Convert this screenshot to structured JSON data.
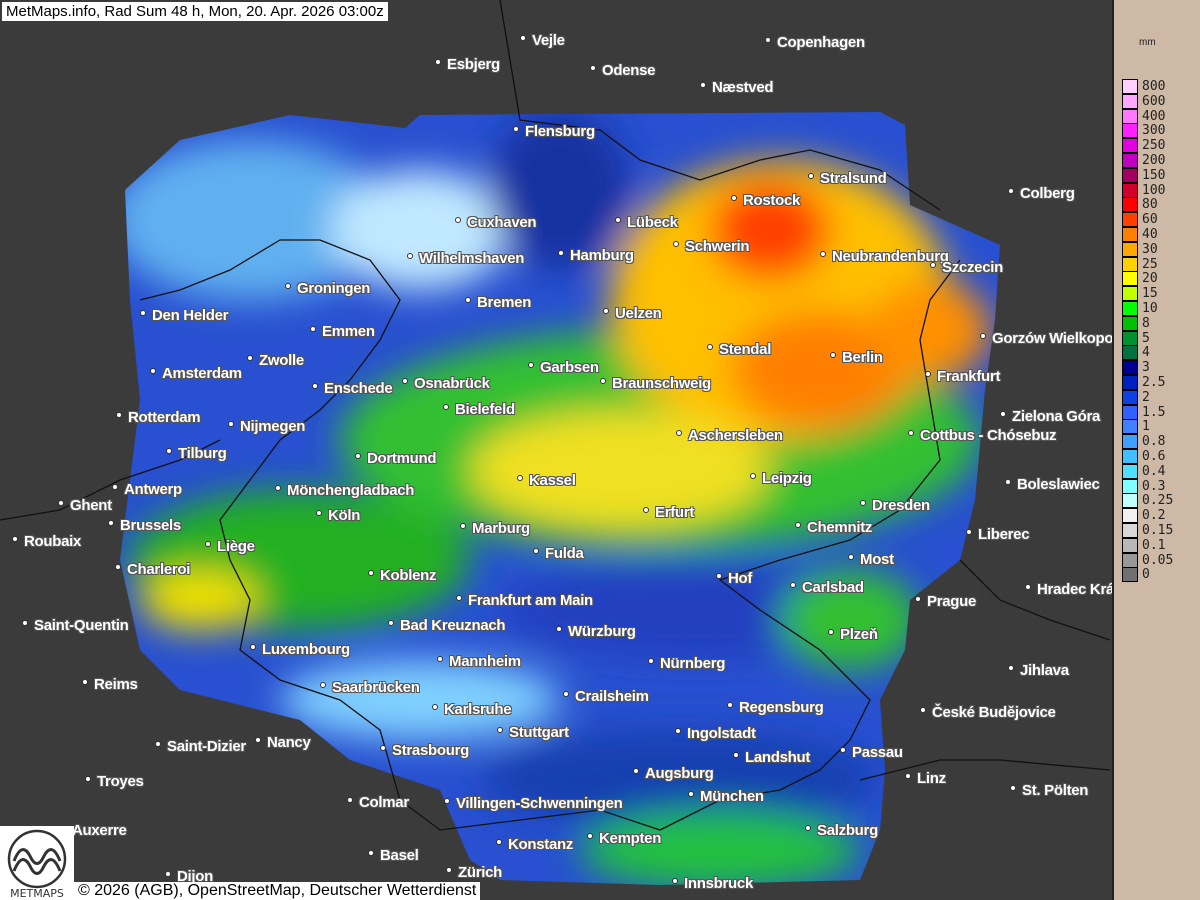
{
  "title": "MetMaps.info, Rad Sum 48 h, Mon, 20. Apr. 2026 03:00z",
  "footer": "© 2026 (AGB), OpenStreetMap, Deutscher Wetterdienst",
  "logo_text": "METMAPS",
  "legend": {
    "unit": "mm",
    "levels": [
      {
        "label": "800",
        "color": "#ffd0ff"
      },
      {
        "label": "600",
        "color": "#ffa8ff"
      },
      {
        "label": "400",
        "color": "#ff78ff"
      },
      {
        "label": "300",
        "color": "#ff20ff"
      },
      {
        "label": "250",
        "color": "#e000e0"
      },
      {
        "label": "200",
        "color": "#c000c0"
      },
      {
        "label": "150",
        "color": "#a00060"
      },
      {
        "label": "100",
        "color": "#d0002a"
      },
      {
        "label": "80",
        "color": "#ff0000"
      },
      {
        "label": "60",
        "color": "#ff4000"
      },
      {
        "label": "40",
        "color": "#ff8000"
      },
      {
        "label": "30",
        "color": "#ffa800"
      },
      {
        "label": "25",
        "color": "#ffd000"
      },
      {
        "label": "20",
        "color": "#ffff00"
      },
      {
        "label": "15",
        "color": "#c0ff00"
      },
      {
        "label": "10",
        "color": "#00ff00"
      },
      {
        "label": "8",
        "color": "#00c000"
      },
      {
        "label": "5",
        "color": "#009030"
      },
      {
        "label": "4",
        "color": "#007040"
      },
      {
        "label": "3",
        "color": "#000090"
      },
      {
        "label": "2.5",
        "color": "#0020c0"
      },
      {
        "label": "2",
        "color": "#1040e0"
      },
      {
        "label": "1.5",
        "color": "#3060ff"
      },
      {
        "label": "1",
        "color": "#4080ff"
      },
      {
        "label": "0.8",
        "color": "#40a0ff"
      },
      {
        "label": "0.6",
        "color": "#40c0ff"
      },
      {
        "label": "0.4",
        "color": "#50e0ff"
      },
      {
        "label": "0.3",
        "color": "#80ffff"
      },
      {
        "label": "0.25",
        "color": "#c0ffff"
      },
      {
        "label": "0.2",
        "color": "#f0f0f0"
      },
      {
        "label": "0.15",
        "color": "#d8d8d8"
      },
      {
        "label": "0.1",
        "color": "#b8b8b8"
      },
      {
        "label": "0.05",
        "color": "#989898"
      },
      {
        "label": "0",
        "color": "#707070"
      }
    ]
  },
  "cities": [
    "Vejle",
    "Copenhagen",
    "Esbjerg",
    "Odense",
    "Næstved",
    "Flensburg",
    "Stralsund",
    "Rostock",
    "Colberg",
    "Cuxhaven",
    "Lübeck",
    "Schwerin",
    "Hamburg",
    "Wilhelmshaven",
    "Neubrandenburg",
    "Szczecin",
    "Groningen",
    "Bremen",
    "Den Helder",
    "Uelzen",
    "Emmen",
    "Gorzów Wielkopolski",
    "Stendal",
    "Berlin",
    "Zwolle",
    "Garbsen",
    "Amsterdam",
    "Frankfurt",
    "Enschede",
    "Osnabrück",
    "Braunschweig",
    "Bielefeld",
    "Rotterdam",
    "Zielona Góra",
    "Nijmegen",
    "Aschersleben",
    "Cottbus - Chósebuz",
    "Tilburg",
    "Dortmund",
    "Leipzig",
    "Kassel",
    "Boleslawiec",
    "Antwerp",
    "Mönchengladbach",
    "Ghent",
    "Dresden",
    "Brussels",
    "Köln",
    "Erfurt",
    "Chemnitz",
    "Marburg",
    "Liberec",
    "Roubaix",
    "Liège",
    "Fulda",
    "Most",
    "Charleroi",
    "Koblenz",
    "Hof",
    "Carlsbad",
    "Hradec Králové",
    "Frankfurt am Main",
    "Prague",
    "Saint-Quentin",
    "Bad Kreuznach",
    "Würzburg",
    "Plzeň",
    "Luxembourg",
    "Mannheim",
    "Nürnberg",
    "Jihlava",
    "Reims",
    "Saarbrücken",
    "Crailsheim",
    "Karlsruhe",
    "Regensburg",
    "České Budějovice",
    "Stuttgart",
    "Ingolstadt",
    "Saint-Dizier",
    "Nancy",
    "Strasbourg",
    "Passau",
    "Landshut",
    "Augsburg",
    "Linz",
    "Troyes",
    "St. Pölten",
    "München",
    "Colmar",
    "Villingen-Schwenningen",
    "Auxerre",
    "Salzburg",
    "Kempten",
    "Konstanz",
    "Basel",
    "Zürich",
    "Dijon",
    "Innsbruck"
  ]
}
